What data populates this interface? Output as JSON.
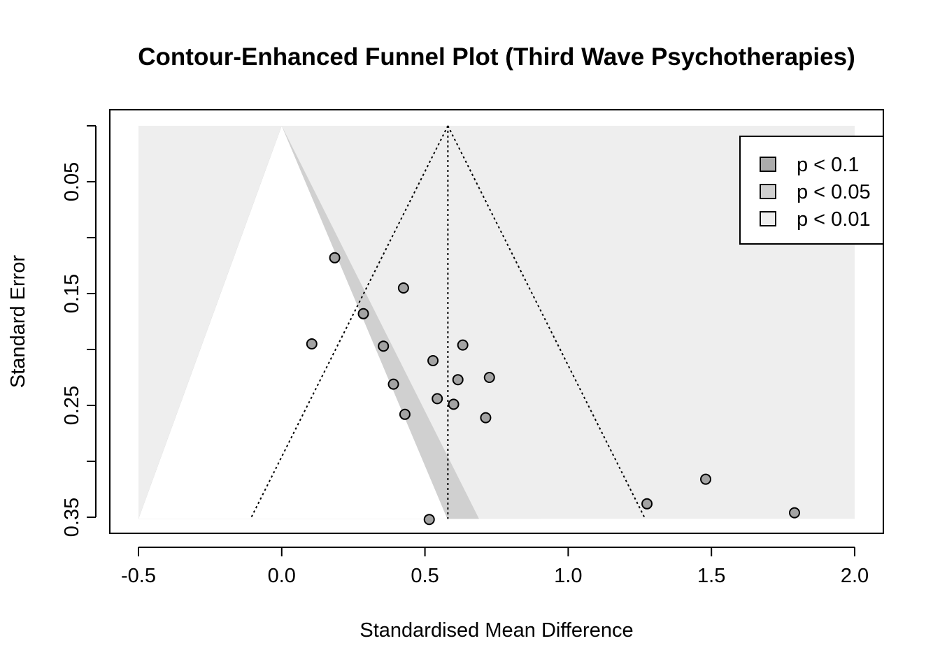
{
  "chart_data": {
    "type": "scatter",
    "title": "Contour-Enhanced Funnel Plot (Third Wave Psychotherapies)",
    "xlabel": "Standardised Mean Difference",
    "ylabel": "Standard Error",
    "xlim": [
      -0.5,
      2.0
    ],
    "ylim_reversed": [
      0.0,
      0.35
    ],
    "x_ticks": [
      {
        "value": -0.5,
        "label": "-0.5"
      },
      {
        "value": 0.0,
        "label": "0.0"
      },
      {
        "value": 0.5,
        "label": "0.5"
      },
      {
        "value": 1.0,
        "label": "1.0"
      },
      {
        "value": 1.5,
        "label": "1.5"
      },
      {
        "value": 2.0,
        "label": "2.0"
      }
    ],
    "y_ticks": [
      {
        "value": 0.0,
        "label": ""
      },
      {
        "value": 0.05,
        "label": "0.05"
      },
      {
        "value": 0.1,
        "label": ""
      },
      {
        "value": 0.15,
        "label": "0.15"
      },
      {
        "value": 0.2,
        "label": ""
      },
      {
        "value": 0.25,
        "label": "0.25"
      },
      {
        "value": 0.3,
        "label": ""
      },
      {
        "value": 0.35,
        "label": "0.35"
      }
    ],
    "pooled_estimate": 0.58,
    "contours": [
      {
        "label": "p < 0.1",
        "z": 1.645,
        "color": "#acacac"
      },
      {
        "label": "p < 0.05",
        "z": 1.96,
        "color": "#d0d0d0"
      },
      {
        "label": "p < 0.01",
        "z": 2.576,
        "color": "#eeeeee"
      }
    ],
    "background_color": "#eeeeee",
    "legend_position": "top-right",
    "points": [
      {
        "x": 0.185,
        "y": 0.118
      },
      {
        "x": 0.425,
        "y": 0.145
      },
      {
        "x": 0.285,
        "y": 0.168
      },
      {
        "x": 0.105,
        "y": 0.195
      },
      {
        "x": 0.355,
        "y": 0.197
      },
      {
        "x": 0.632,
        "y": 0.196
      },
      {
        "x": 0.528,
        "y": 0.21
      },
      {
        "x": 0.615,
        "y": 0.227
      },
      {
        "x": 0.725,
        "y": 0.225
      },
      {
        "x": 0.39,
        "y": 0.231
      },
      {
        "x": 0.543,
        "y": 0.244
      },
      {
        "x": 0.6,
        "y": 0.249
      },
      {
        "x": 0.43,
        "y": 0.258
      },
      {
        "x": 0.712,
        "y": 0.261
      },
      {
        "x": 1.48,
        "y": 0.316
      },
      {
        "x": 1.275,
        "y": 0.338
      },
      {
        "x": 1.79,
        "y": 0.346
      },
      {
        "x": 0.515,
        "y": 0.352
      }
    ]
  }
}
